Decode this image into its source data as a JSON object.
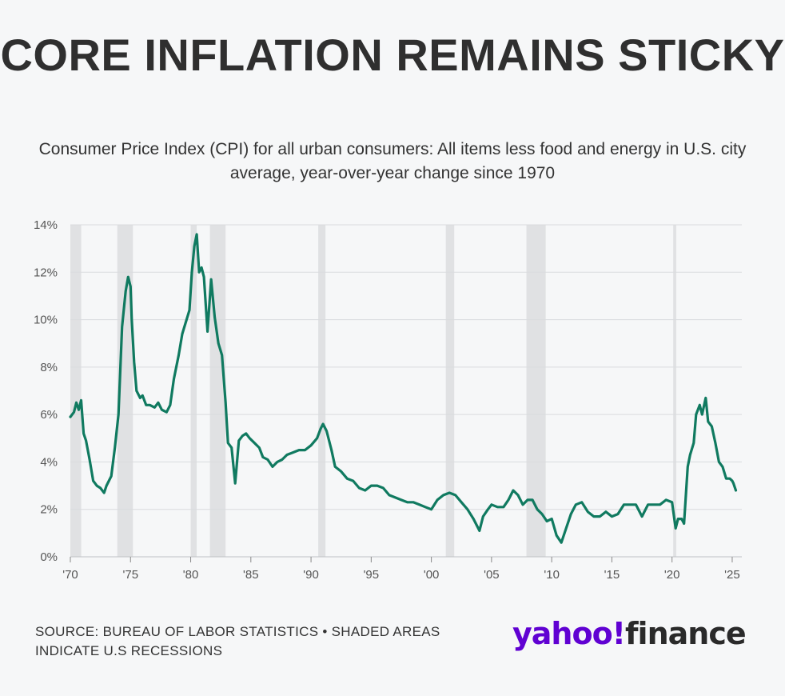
{
  "title": "CORE INFLATION REMAINS STICKY",
  "subtitle": "Consumer Price Index (CPI) for all urban consumers: All items less food and energy in U.S. city average, year-over-year change since 1970",
  "source": "SOURCE: BUREAU OF LABOR STATISTICS • SHADED AREAS INDICATE U.S RECESSIONS",
  "logo": {
    "brand": "yahoo!",
    "product": "finance"
  },
  "colors": {
    "line": "#107a60",
    "recession": "#e0e1e3",
    "grid": "#d9dbde",
    "brand": "#6001d2"
  },
  "chart_data": {
    "type": "line",
    "title": "",
    "xlabel": "",
    "ylabel": "",
    "xlim": [
      1970,
      2025.8
    ],
    "ylim": [
      0,
      14
    ],
    "y_ticks": [
      0,
      2,
      4,
      6,
      8,
      10,
      12,
      14
    ],
    "y_tick_labels": [
      "0%",
      "2%",
      "4%",
      "6%",
      "8%",
      "10%",
      "12%",
      "14%"
    ],
    "x_ticks": [
      1970,
      1975,
      1980,
      1985,
      1990,
      1995,
      2000,
      2005,
      2010,
      2015,
      2020,
      2025
    ],
    "x_tick_labels": [
      "'70",
      "'75",
      "'80",
      "'85",
      "'90",
      "'95",
      "'00",
      "'05",
      "'10",
      "'15",
      "'20",
      "'25"
    ],
    "grid": "horizontal",
    "recessions": [
      [
        1970.0,
        1970.9
      ],
      [
        1973.9,
        1975.2
      ],
      [
        1980.0,
        1980.5
      ],
      [
        1981.6,
        1982.9
      ],
      [
        1990.6,
        1991.2
      ],
      [
        2001.2,
        2001.9
      ],
      [
        2007.9,
        2009.5
      ],
      [
        2020.1,
        2020.35
      ]
    ],
    "series": [
      {
        "x": [
          1970.0,
          1970.3,
          1970.5,
          1970.7,
          1970.9,
          1971.1,
          1971.3,
          1971.6,
          1971.9,
          1972.2,
          1972.5,
          1972.8,
          1973.0,
          1973.2,
          1973.4,
          1973.7,
          1974.0,
          1974.3,
          1974.6,
          1974.8,
          1975.0,
          1975.1,
          1975.3,
          1975.5,
          1975.8,
          1976.0,
          1976.3,
          1976.6,
          1977.0,
          1977.3,
          1977.6,
          1978.0,
          1978.3,
          1978.6,
          1979.0,
          1979.3,
          1979.6,
          1979.9,
          1980.1,
          1980.3,
          1980.5,
          1980.7,
          1980.9,
          1981.1,
          1981.4,
          1981.7,
          1982.0,
          1982.3,
          1982.6,
          1982.9,
          1983.1,
          1983.4,
          1983.7,
          1984.0,
          1984.3,
          1984.6,
          1984.9,
          1985.3,
          1985.7,
          1986.0,
          1986.4,
          1986.8,
          1987.2,
          1987.6,
          1988.0,
          1988.5,
          1989.0,
          1989.5,
          1990.0,
          1990.5,
          1990.8,
          1991.0,
          1991.3,
          1991.7,
          1992.0,
          1992.5,
          1993.0,
          1993.5,
          1994.0,
          1994.5,
          1995.0,
          1995.5,
          1996.0,
          1996.5,
          1997.0,
          1997.5,
          1998.0,
          1998.5,
          1999.0,
          1999.5,
          2000.0,
          2000.5,
          2001.0,
          2001.5,
          2002.0,
          2002.5,
          2003.0,
          2003.5,
          2004.0,
          2004.3,
          2004.7,
          2005.0,
          2005.5,
          2006.0,
          2006.4,
          2006.8,
          2007.2,
          2007.6,
          2008.0,
          2008.4,
          2008.8,
          2009.2,
          2009.6,
          2010.0,
          2010.4,
          2010.8,
          2011.2,
          2011.6,
          2012.0,
          2012.5,
          2013.0,
          2013.5,
          2014.0,
          2014.5,
          2015.0,
          2015.5,
          2016.0,
          2016.5,
          2017.0,
          2017.5,
          2018.0,
          2018.5,
          2019.0,
          2019.5,
          2020.0,
          2020.3,
          2020.5,
          2020.8,
          2021.0,
          2021.3,
          2021.5,
          2021.8,
          2022.0,
          2022.3,
          2022.5,
          2022.8,
          2023.0,
          2023.3,
          2023.6,
          2023.9,
          2024.2,
          2024.5,
          2024.8,
          2025.0,
          2025.1,
          2025.3
        ],
        "values": [
          5.9,
          6.1,
          6.5,
          6.2,
          6.6,
          5.2,
          4.9,
          4.1,
          3.2,
          3.0,
          2.9,
          2.7,
          3.0,
          3.2,
          3.4,
          4.6,
          6.0,
          9.7,
          11.2,
          11.8,
          11.4,
          10.0,
          8.2,
          7.0,
          6.7,
          6.8,
          6.4,
          6.4,
          6.3,
          6.5,
          6.2,
          6.1,
          6.4,
          7.5,
          8.5,
          9.4,
          9.9,
          10.4,
          12.0,
          13.1,
          13.6,
          12.0,
          12.2,
          11.8,
          9.5,
          11.7,
          10.1,
          9.0,
          8.5,
          6.5,
          4.8,
          4.6,
          3.1,
          4.9,
          5.1,
          5.2,
          5.0,
          4.8,
          4.6,
          4.2,
          4.1,
          3.8,
          4.0,
          4.1,
          4.3,
          4.4,
          4.5,
          4.5,
          4.7,
          5.0,
          5.4,
          5.6,
          5.3,
          4.5,
          3.8,
          3.6,
          3.3,
          3.2,
          2.9,
          2.8,
          3.0,
          3.0,
          2.9,
          2.6,
          2.5,
          2.4,
          2.3,
          2.3,
          2.2,
          2.1,
          2.0,
          2.4,
          2.6,
          2.7,
          2.6,
          2.3,
          2.0,
          1.6,
          1.1,
          1.7,
          2.0,
          2.2,
          2.1,
          2.1,
          2.4,
          2.8,
          2.6,
          2.2,
          2.4,
          2.4,
          2.0,
          1.8,
          1.5,
          1.6,
          0.9,
          0.6,
          1.2,
          1.8,
          2.2,
          2.3,
          1.9,
          1.7,
          1.7,
          1.9,
          1.7,
          1.8,
          2.2,
          2.2,
          2.2,
          1.7,
          2.2,
          2.2,
          2.2,
          2.4,
          2.3,
          1.2,
          1.6,
          1.6,
          1.4,
          3.8,
          4.3,
          4.8,
          6.0,
          6.4,
          6.0,
          6.7,
          5.7,
          5.5,
          4.8,
          4.0,
          3.8,
          3.3,
          3.3,
          3.2,
          3.1,
          2.8
        ]
      }
    ]
  }
}
